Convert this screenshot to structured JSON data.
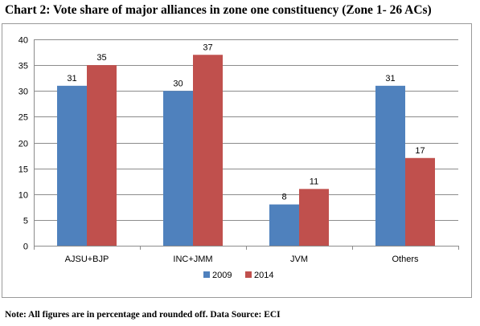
{
  "title": "Chart 2: Vote share of major alliances in zone one constituency (Zone 1- 26 ACs)",
  "note": "Note: All figures are in percentage and rounded off. Data Source: ECI",
  "chart_data": {
    "type": "bar",
    "categories": [
      "AJSU+BJP",
      "INC+JMM",
      "JVM",
      "Others"
    ],
    "series": [
      {
        "name": "2009",
        "values": [
          31,
          30,
          8,
          31
        ],
        "color": "#4F81BD"
      },
      {
        "name": "2014",
        "values": [
          35,
          37,
          11,
          17
        ],
        "color": "#C0504D"
      }
    ],
    "ylim": [
      0,
      40
    ],
    "yticks": [
      0,
      5,
      10,
      15,
      20,
      25,
      30,
      35,
      40
    ],
    "grid": true,
    "legend": "bottom-center",
    "data_labels": true
  }
}
